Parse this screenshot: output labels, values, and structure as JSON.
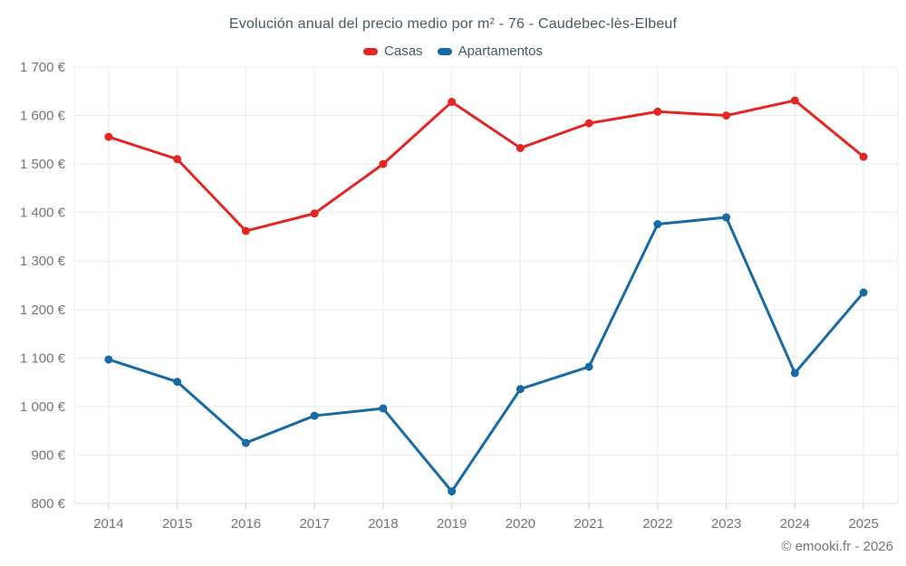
{
  "footer": {
    "copyright": "© emooki.fr - 2026"
  },
  "chart_data": {
    "type": "line",
    "title": "Evolución anual del precio medio por m² - 76 - Caudebec-lès-Elbeuf",
    "categories": [
      "2014",
      "2015",
      "2016",
      "2017",
      "2018",
      "2019",
      "2020",
      "2021",
      "2022",
      "2023",
      "2024",
      "2025"
    ],
    "series": [
      {
        "name": "Casas",
        "color": "#e22622",
        "values": [
          1556,
          1510,
          1362,
          1398,
          1500,
          1628,
          1533,
          1584,
          1608,
          1600,
          1631,
          1515
        ]
      },
      {
        "name": "Apartamentos",
        "color": "#176aa6",
        "values": [
          1097,
          1051,
          925,
          981,
          996,
          825,
          1036,
          1082,
          1376,
          1390,
          1069,
          1235
        ]
      }
    ],
    "xlabel": "",
    "ylabel": "",
    "ylim": [
      800,
      1700
    ],
    "y_ticks": [
      800,
      900,
      1000,
      1100,
      1200,
      1300,
      1400,
      1500,
      1600,
      1700
    ],
    "y_tick_labels": [
      "800 €",
      "900 €",
      "1 000 €",
      "1 100 €",
      "1 200 €",
      "1 300 €",
      "1 400 €",
      "1 500 €",
      "1 600 €",
      "1 700 €"
    ],
    "grid": true,
    "legend_position": "top",
    "currency_suffix": "€",
    "colors": {
      "grid": "#ececec",
      "axis_line": "#dcdcdc",
      "tick": "#cccccc",
      "axis_label": "#757575",
      "title_text": "#455a64",
      "footer_text": "#757575"
    }
  }
}
